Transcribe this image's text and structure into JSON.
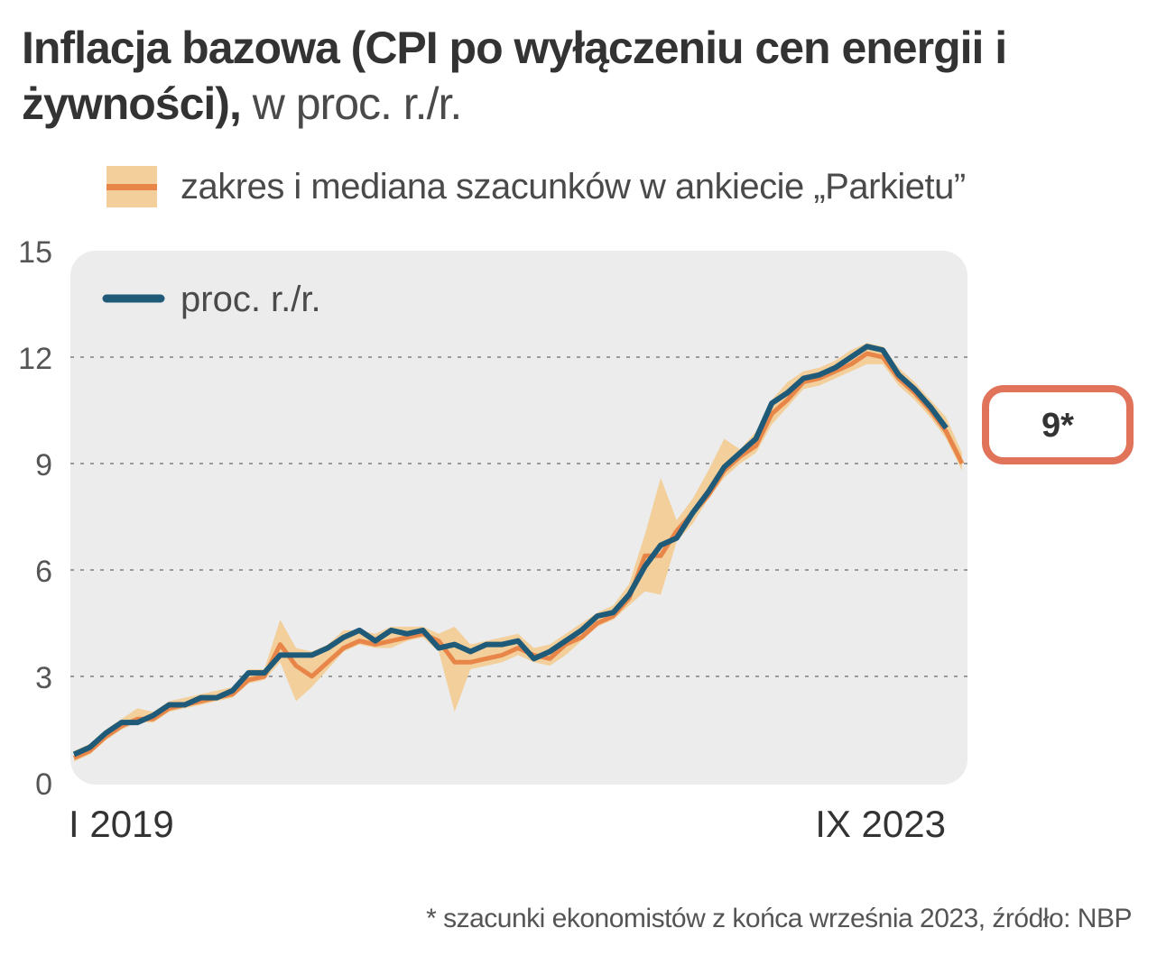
{
  "title": {
    "bold": "Inflacja bazowa (CPI po wyłączeniu cen energii i żywności),",
    "unit": " w proc. r./r."
  },
  "legend": {
    "band_label": "zakres i mediana szacunków w ankiecie „Parkietu”",
    "line_label": "proc. r./r."
  },
  "callout": {
    "label": "9*"
  },
  "footnote": "* szacunki ekonomistów z końca września 2023, źródło: NBP",
  "colors": {
    "line": "#1f5a78",
    "median": "#e8864a",
    "band": "#f2cf9b",
    "plot_bg": "#ececec",
    "callout_border": "#e0735a"
  },
  "chart_data": {
    "type": "line",
    "title": "Inflacja bazowa (CPI po wyłączeniu cen energii i żywności), w proc. r./r.",
    "xlabel": "",
    "ylabel": "",
    "ylim": [
      0,
      15
    ],
    "yticks": [
      0,
      3,
      6,
      9,
      12,
      15
    ],
    "x_labels": {
      "start": "I 2019",
      "end": "IX 2023"
    },
    "period_count": 57,
    "series": [
      {
        "name": "proc. r./r.",
        "values": [
          0.8,
          1.0,
          1.4,
          1.7,
          1.7,
          1.9,
          2.2,
          2.2,
          2.4,
          2.4,
          2.6,
          3.1,
          3.1,
          3.6,
          3.6,
          3.6,
          3.8,
          4.1,
          4.3,
          4.0,
          4.3,
          4.2,
          4.3,
          3.8,
          3.9,
          3.7,
          3.9,
          3.9,
          4.0,
          3.5,
          3.7,
          4.0,
          4.3,
          4.7,
          4.8,
          5.3,
          6.1,
          6.7,
          6.9,
          7.6,
          8.2,
          8.9,
          9.3,
          9.7,
          10.7,
          11.0,
          11.4,
          11.5,
          11.7,
          12.0,
          12.3,
          12.2,
          11.5,
          11.1,
          10.6,
          10.0
        ]
      },
      {
        "name": "mediana szacunków",
        "values": [
          0.7,
          0.9,
          1.3,
          1.6,
          1.8,
          1.8,
          2.1,
          2.2,
          2.3,
          2.4,
          2.5,
          2.9,
          3.0,
          3.9,
          3.3,
          3.0,
          3.4,
          3.8,
          4.0,
          3.9,
          4.0,
          4.1,
          4.2,
          4.0,
          3.4,
          3.4,
          3.5,
          3.6,
          3.8,
          3.6,
          3.5,
          3.9,
          4.1,
          4.5,
          4.7,
          5.2,
          6.4,
          6.4,
          7.1,
          7.6,
          8.1,
          8.8,
          9.2,
          9.5,
          10.4,
          10.8,
          11.3,
          11.4,
          11.6,
          11.8,
          12.1,
          12.0,
          11.4,
          11.0,
          10.5,
          9.9,
          9.0
        ]
      }
    ],
    "band": {
      "name": "zakres szacunków",
      "low": [
        0.6,
        0.8,
        1.2,
        1.5,
        1.7,
        1.7,
        2.0,
        2.1,
        2.2,
        2.3,
        2.4,
        2.8,
        2.9,
        3.4,
        2.3,
        2.7,
        3.2,
        3.7,
        3.9,
        3.8,
        3.8,
        4.0,
        4.1,
        3.7,
        2.0,
        3.2,
        3.3,
        3.4,
        3.6,
        3.4,
        3.3,
        3.6,
        4.0,
        4.4,
        4.6,
        5.0,
        5.4,
        5.3,
        6.8,
        7.3,
        8.0,
        8.6,
        9.0,
        9.3,
        10.1,
        10.6,
        11.1,
        11.2,
        11.4,
        11.6,
        11.8,
        11.8,
        11.2,
        10.8,
        10.3,
        9.7,
        8.8
      ],
      "high": [
        0.9,
        1.1,
        1.5,
        1.8,
        2.1,
        2.0,
        2.3,
        2.4,
        2.5,
        2.6,
        2.7,
        3.2,
        3.2,
        4.6,
        3.8,
        3.7,
        3.9,
        4.3,
        4.3,
        4.2,
        4.4,
        4.4,
        4.4,
        4.2,
        4.4,
        3.9,
        4.0,
        4.1,
        4.2,
        3.8,
        3.9,
        4.2,
        4.5,
        4.8,
        5.0,
        5.6,
        7.0,
        8.6,
        7.4,
        8.0,
        8.8,
        9.7,
        9.4,
        9.9,
        10.8,
        11.3,
        11.6,
        11.7,
        11.9,
        12.2,
        12.4,
        12.3,
        11.7,
        11.3,
        10.8,
        10.3,
        9.3
      ]
    },
    "callout_value": 9
  }
}
